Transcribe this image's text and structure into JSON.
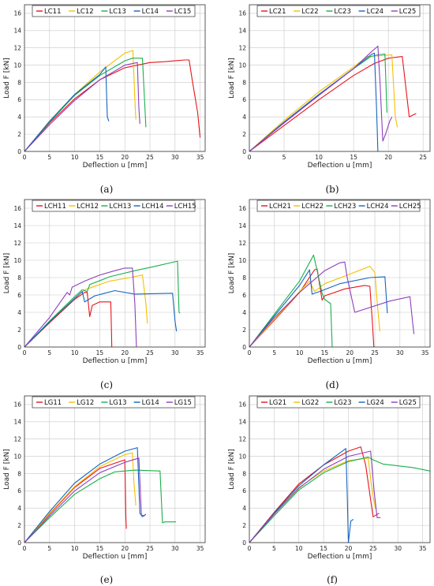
{
  "colors": {
    "s1": "#e8141c",
    "s2": "#f5c100",
    "s3": "#19b04b",
    "s4": "#1565c0",
    "s5": "#8e3fbf"
  },
  "chart_data": [
    {
      "type": "line",
      "caption": "(a)",
      "xlabel": "Deflection u [mm]",
      "ylabel": "Load F [kN]",
      "xlim": [
        0,
        36
      ],
      "ylim": [
        0,
        17
      ],
      "xticks": [
        "0",
        "5",
        "10",
        "15",
        "20",
        "25",
        "30",
        "35"
      ],
      "yticks": [
        "0",
        "2",
        "4",
        "6",
        "8",
        "10",
        "12",
        "14",
        "16"
      ],
      "grid": true,
      "legend": "top",
      "series": [
        {
          "name": "LC11",
          "x": [
            0,
            5,
            10,
            15,
            20,
            25,
            28,
            30,
            32,
            32.8,
            33.5,
            34.5,
            35
          ],
          "y": [
            0,
            3.3,
            6.1,
            8.3,
            9.7,
            10.3,
            10.4,
            10.5,
            10.6,
            10.6,
            8,
            4.5,
            1.6
          ]
        },
        {
          "name": "LC12",
          "x": [
            0,
            5,
            10,
            15,
            20,
            21.6,
            22,
            22.2
          ],
          "y": [
            0,
            3.5,
            6.6,
            9.2,
            11.4,
            11.7,
            6,
            3.7
          ]
        },
        {
          "name": "LC13",
          "x": [
            0,
            5,
            10,
            15,
            20,
            21.5,
            23.5,
            24,
            24.2
          ],
          "y": [
            0,
            3.4,
            6.5,
            8.8,
            10.5,
            10.8,
            10.8,
            5,
            2.8
          ]
        },
        {
          "name": "LC14",
          "x": [
            0,
            5,
            10,
            15,
            16.2,
            16.5,
            16.8
          ],
          "y": [
            0,
            3.5,
            6.6,
            8.9,
            9.8,
            4,
            3.5
          ]
        },
        {
          "name": "LC15",
          "x": [
            0,
            5,
            10,
            15,
            20,
            22.5,
            22.8,
            23
          ],
          "y": [
            0,
            3.1,
            5.9,
            8.3,
            10,
            10.3,
            5,
            3.2
          ]
        }
      ]
    },
    {
      "type": "line",
      "caption": "(b)",
      "xlabel": "Deflection u [mm]",
      "ylabel": "Load F [kN]",
      "xlim": [
        0,
        26
      ],
      "ylim": [
        0,
        17
      ],
      "xticks": [
        "0",
        "5",
        "10",
        "15",
        "20",
        "25"
      ],
      "yticks": [
        "0",
        "2",
        "4",
        "6",
        "8",
        "10",
        "12",
        "14",
        "16"
      ],
      "grid": true,
      "legend": "top",
      "series": [
        {
          "name": "LC21",
          "x": [
            0,
            5,
            10,
            15,
            18,
            20,
            22,
            23,
            24
          ],
          "y": [
            0,
            3,
            6,
            8.8,
            10.2,
            10.8,
            11,
            4,
            4.4
          ]
        },
        {
          "name": "LC22",
          "x": [
            0,
            5,
            10,
            15,
            17,
            19,
            20.5,
            21,
            21.3
          ],
          "y": [
            0,
            3.6,
            6.9,
            9.8,
            11,
            11.1,
            11.2,
            4,
            2.8
          ]
        },
        {
          "name": "LC23",
          "x": [
            0,
            5,
            10,
            15,
            17.5,
            18.5,
            19.5,
            19.8
          ],
          "y": [
            0,
            3.4,
            6.6,
            9.6,
            11,
            11.2,
            11.3,
            4.5
          ]
        },
        {
          "name": "LC24",
          "x": [
            0,
            5,
            10,
            15,
            17.5,
            18,
            18.3,
            18.5
          ],
          "y": [
            0,
            3.4,
            6.6,
            9.6,
            11.2,
            11.4,
            5,
            0
          ]
        },
        {
          "name": "LC25",
          "x": [
            0,
            5,
            10,
            15,
            17.5,
            18.5,
            18.8,
            19.2,
            19.6,
            20.2,
            20.5
          ],
          "y": [
            0,
            3.3,
            6.5,
            9.6,
            11.5,
            12.2,
            8,
            1.2,
            2,
            3.5,
            4
          ]
        }
      ]
    },
    {
      "type": "line",
      "caption": "(c)",
      "xlabel": "Deflection u [mm]",
      "ylabel": "Load F [kN]",
      "xlim": [
        0,
        36
      ],
      "ylim": [
        0,
        17
      ],
      "xticks": [
        "0",
        "5",
        "10",
        "15",
        "20",
        "25",
        "30",
        "35"
      ],
      "yticks": [
        "0",
        "2",
        "4",
        "6",
        "8",
        "10",
        "12",
        "14",
        "16"
      ],
      "grid": true,
      "legend": "top",
      "series": [
        {
          "name": "LCH11",
          "x": [
            0,
            5,
            10,
            12,
            12.5,
            13,
            13.5,
            15,
            17.2,
            17.4
          ],
          "y": [
            0,
            2.8,
            5.5,
            6.3,
            6.3,
            3.5,
            4.8,
            5.2,
            5.2,
            0
          ]
        },
        {
          "name": "LCH12",
          "x": [
            0,
            5,
            10,
            12,
            13,
            17,
            21,
            23.5,
            24.2,
            24.5
          ],
          "y": [
            0,
            2.9,
            5.6,
            6.6,
            6.8,
            7.6,
            8,
            8.3,
            5,
            2.7
          ]
        },
        {
          "name": "LCH13",
          "x": [
            0,
            5,
            10,
            11.5,
            12.5,
            13,
            17,
            22,
            26,
            30.5,
            30.8,
            31
          ],
          "y": [
            0,
            3,
            5.8,
            6.6,
            6.4,
            7.2,
            8.1,
            8.8,
            9.3,
            9.9,
            4,
            3.9
          ]
        },
        {
          "name": "LCH14",
          "x": [
            0,
            5,
            10,
            11.5,
            12,
            14,
            16,
            18,
            22,
            29.5,
            30,
            30.3
          ],
          "y": [
            0,
            2.9,
            5.6,
            6.4,
            5.2,
            5.9,
            6.2,
            6.5,
            6.1,
            6.2,
            3,
            1.8
          ]
        },
        {
          "name": "LCH15",
          "x": [
            0,
            5,
            8.5,
            9,
            9.5,
            12,
            15,
            18,
            20,
            21.5,
            22,
            22.3
          ],
          "y": [
            0,
            3.4,
            6.3,
            6,
            6.9,
            7.6,
            8.3,
            8.8,
            9.1,
            9.1,
            5,
            0
          ]
        }
      ]
    },
    {
      "type": "line",
      "caption": "(d)",
      "xlabel": "Deflection u [mm]",
      "ylabel": "Load F [kN]",
      "xlim": [
        0,
        36
      ],
      "ylim": [
        0,
        17
      ],
      "xticks": [
        "0",
        "5",
        "10",
        "15",
        "20",
        "25",
        "30",
        "35"
      ],
      "yticks": [
        "0",
        "2",
        "4",
        "6",
        "8",
        "10",
        "12",
        "14",
        "16"
      ],
      "grid": true,
      "legend": "top",
      "series": [
        {
          "name": "LCH21",
          "x": [
            0,
            5,
            10,
            13,
            13.5,
            14.5,
            15,
            19,
            23,
            24,
            24.5,
            24.8
          ],
          "y": [
            0,
            3.1,
            6.3,
            8.9,
            9,
            5.4,
            5.9,
            6.7,
            7.1,
            7,
            3,
            0
          ]
        },
        {
          "name": "LCH22",
          "x": [
            0,
            5,
            10,
            12,
            13,
            15,
            20,
            24,
            25,
            25.5,
            26
          ],
          "y": [
            0,
            3.2,
            6.4,
            7.6,
            6.4,
            7.3,
            8.4,
            9.3,
            8.6,
            5,
            1.8
          ]
        },
        {
          "name": "LCH23",
          "x": [
            0,
            5,
            10,
            12.8,
            13.5,
            14.5,
            15,
            16.2,
            16.5
          ],
          "y": [
            0,
            3.8,
            7.6,
            10.6,
            8.8,
            6.2,
            5.5,
            5,
            0
          ]
        },
        {
          "name": "LCH24",
          "x": [
            0,
            5,
            10,
            12,
            12.5,
            14,
            18,
            24,
            27,
            27.5
          ],
          "y": [
            0,
            3.6,
            7.1,
            8.9,
            6.1,
            6.4,
            7.3,
            8,
            8.1,
            3.9
          ]
        },
        {
          "name": "LCH25",
          "x": [
            0,
            5,
            10,
            15,
            18,
            19,
            19.5,
            21,
            28,
            32,
            32.5,
            32.8
          ],
          "y": [
            0,
            3.4,
            6.3,
            8.8,
            9.7,
            9.8,
            8,
            4,
            5.3,
            5.8,
            3,
            1.5
          ]
        }
      ]
    },
    {
      "type": "line",
      "caption": "(e)",
      "xlabel": "Deflection u [mm]",
      "ylabel": "Load F [kN]",
      "xlim": [
        0,
        36
      ],
      "ylim": [
        0,
        17
      ],
      "xticks": [
        "0",
        "5",
        "10",
        "15",
        "20",
        "25",
        "30",
        "35"
      ],
      "yticks": [
        "0",
        "2",
        "4",
        "6",
        "8",
        "10",
        "12",
        "14",
        "16"
      ],
      "grid": true,
      "legend": "top",
      "series": [
        {
          "name": "LG11",
          "x": [
            0,
            5,
            10,
            15,
            20,
            20.2,
            20.3
          ],
          "y": [
            0,
            3.3,
            6.4,
            8.6,
            9.6,
            3,
            1.6
          ]
        },
        {
          "name": "LG12",
          "x": [
            0,
            5,
            10,
            15,
            20,
            21.5,
            21.8,
            22.2
          ],
          "y": [
            0,
            3.4,
            6.5,
            8.8,
            10.2,
            10.4,
            7,
            4.3
          ]
        },
        {
          "name": "LG13",
          "x": [
            0,
            5,
            10,
            15,
            18,
            22,
            27,
            27.5,
            28,
            30.2
          ],
          "y": [
            0,
            2.9,
            5.6,
            7.4,
            8.2,
            8.4,
            8.3,
            2.3,
            2.4,
            2.4
          ]
        },
        {
          "name": "LG14",
          "x": [
            0,
            5,
            10,
            15,
            20,
            22.5,
            23,
            23.5,
            24.2
          ],
          "y": [
            0,
            3.6,
            6.9,
            9.1,
            10.6,
            11,
            3.4,
            3,
            3.3
          ]
        },
        {
          "name": "LG15",
          "x": [
            0,
            5,
            10,
            15,
            20,
            22.8,
            23.3,
            24
          ],
          "y": [
            0,
            3.1,
            6,
            8.1,
            9.3,
            9.8,
            3.2,
            3.1
          ]
        }
      ]
    },
    {
      "type": "line",
      "caption": "(f)",
      "xlabel": "Deflection u [mm]",
      "ylabel": "Load F [kN]",
      "xlim": [
        0,
        36.5
      ],
      "ylim": [
        0,
        17
      ],
      "xticks": [
        "0",
        "5",
        "10",
        "15",
        "20",
        "25",
        "30",
        "35"
      ],
      "yticks": [
        "0",
        "2",
        "4",
        "6",
        "8",
        "10",
        "12",
        "14",
        "16"
      ],
      "grid": true,
      "legend": "top",
      "series": [
        {
          "name": "LG21",
          "x": [
            0,
            5,
            10,
            15,
            20,
            22.5,
            23.5,
            25,
            26.2
          ],
          "y": [
            0,
            3.5,
            6.8,
            9,
            10.6,
            11.1,
            9,
            3,
            3.4
          ]
        },
        {
          "name": "LG22",
          "x": [
            0,
            5,
            10,
            15,
            20,
            24,
            24.8,
            25.5
          ],
          "y": [
            0,
            3.3,
            6.4,
            8.3,
            9.5,
            9.8,
            6,
            3.9
          ]
        },
        {
          "name": "LG23",
          "x": [
            0,
            5,
            10,
            15,
            20,
            24,
            25,
            27,
            30,
            33,
            36.5
          ],
          "y": [
            0,
            3.1,
            6.1,
            8.1,
            9.4,
            9.9,
            9.6,
            9.1,
            8.9,
            8.7,
            8.3
          ]
        },
        {
          "name": "LG24",
          "x": [
            0,
            5,
            10,
            15,
            19.5,
            19.8,
            20,
            20.5,
            21
          ],
          "y": [
            0,
            3.4,
            6.6,
            9,
            10.9,
            5,
            0,
            2.5,
            2.7
          ]
        },
        {
          "name": "LG25",
          "x": [
            0,
            5,
            10,
            15,
            20,
            24.5,
            25.2,
            25.8,
            26.5
          ],
          "y": [
            0,
            3.3,
            6.3,
            8.5,
            10,
            10.6,
            6,
            2.9,
            2.9
          ]
        }
      ]
    }
  ]
}
